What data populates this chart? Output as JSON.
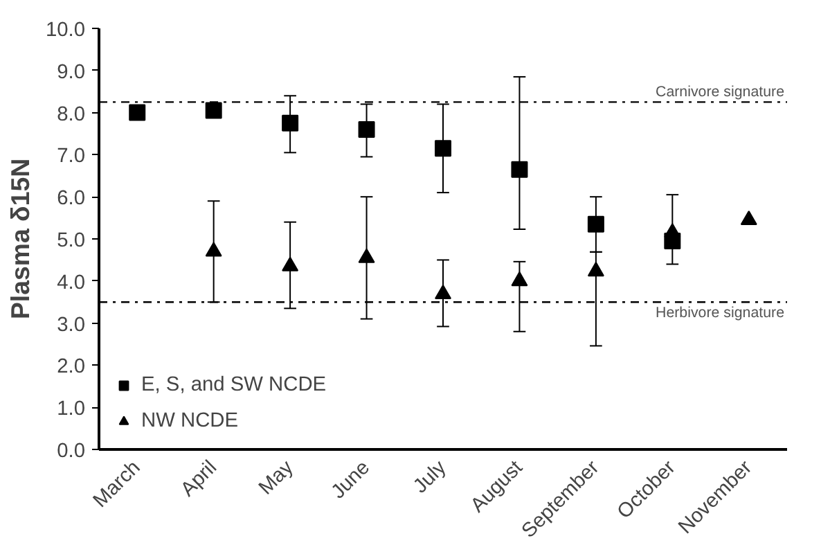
{
  "chart_data": {
    "type": "scatter",
    "ylabel": "Plasma δ15N",
    "categories": [
      "March",
      "April",
      "May",
      "June",
      "July",
      "August",
      "September",
      "October",
      "November"
    ],
    "series": [
      {
        "name": "E, S, and SW NCDE",
        "color": "#000000",
        "marker": "square",
        "values": [
          8.0,
          8.05,
          7.75,
          7.6,
          7.15,
          6.65,
          5.35,
          4.95,
          null
        ],
        "errors": [
          null,
          null,
          [
            7.05,
            8.4
          ],
          [
            6.95,
            8.2
          ],
          [
            6.1,
            8.2
          ],
          [
            5.23,
            8.85
          ],
          [
            4.69,
            6.0
          ],
          [
            4.4,
            6.05
          ],
          null
        ]
      },
      {
        "name": "NW NCDE",
        "color": "#000000",
        "marker": "triangle",
        "values": [
          null,
          4.7,
          4.35,
          4.55,
          3.69,
          4.0,
          4.23,
          5.15,
          5.45
        ],
        "errors": [
          null,
          [
            3.5,
            5.9
          ],
          [
            3.35,
            5.4
          ],
          [
            3.1,
            6.0
          ],
          [
            2.92,
            4.5
          ],
          [
            2.8,
            4.46
          ],
          [
            2.46,
            4.69
          ],
          null,
          null
        ]
      }
    ],
    "ylim": [
      0,
      10
    ],
    "yticks": [
      {
        "value": 0,
        "label": "0.0"
      },
      {
        "value": 1,
        "label": "1.0"
      },
      {
        "value": 2,
        "label": "2.0"
      },
      {
        "value": 3,
        "label": "3.0"
      },
      {
        "value": 4,
        "label": "4.0"
      },
      {
        "value": 5,
        "label": "5.0"
      },
      {
        "value": 6,
        "label": "6.0"
      },
      {
        "value": 7,
        "label": "7.0"
      },
      {
        "value": 8,
        "label": "8.0"
      },
      {
        "value": 9,
        "label": "9.0"
      },
      {
        "value": 10,
        "label": "10.0"
      }
    ],
    "ref_lines": [
      {
        "axis": "y",
        "value": 8.25,
        "label": "Carnivore signature",
        "line_style": "dashdot",
        "color": "#000000"
      },
      {
        "axis": "y",
        "value": 3.5,
        "label": "Herbivore signature",
        "line_style": "dashdot",
        "color": "#000000"
      }
    ],
    "grid": false,
    "legend": "bottom left"
  }
}
